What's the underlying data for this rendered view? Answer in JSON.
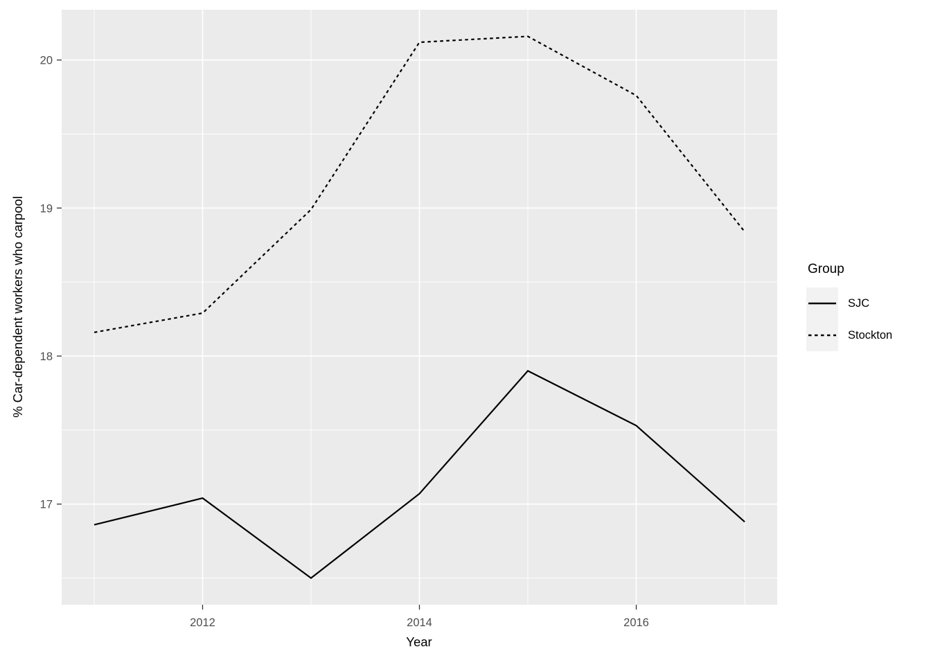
{
  "chart_data": {
    "type": "line",
    "title": "",
    "xlabel": "Year",
    "ylabel": "% Car-dependent workers who carpool",
    "x": [
      2011,
      2012,
      2013,
      2014,
      2015,
      2016,
      2017
    ],
    "series": [
      {
        "name": "SJC",
        "style": "solid",
        "values": [
          16.86,
          17.04,
          16.5,
          17.07,
          17.9,
          17.53,
          16.88
        ]
      },
      {
        "name": "Stockton",
        "style": "dashed",
        "values": [
          18.16,
          18.29,
          18.99,
          20.12,
          20.16,
          19.76,
          18.84
        ]
      }
    ],
    "xlim": [
      2010.7,
      2017.3
    ],
    "ylim": [
      16.32,
      20.34
    ],
    "x_ticks": [
      {
        "value": 2012,
        "label": "2012"
      },
      {
        "value": 2014,
        "label": "2014"
      },
      {
        "value": 2016,
        "label": "2016"
      }
    ],
    "y_ticks": [
      {
        "value": 17,
        "label": "17"
      },
      {
        "value": 18,
        "label": "18"
      },
      {
        "value": 19,
        "label": "19"
      },
      {
        "value": 20,
        "label": "20"
      }
    ],
    "x_minor_ticks": [
      2011,
      2013,
      2015,
      2017
    ],
    "y_minor_ticks": [
      16.5,
      17.5,
      18.5,
      19.5
    ],
    "grid": true,
    "legend_position": "right",
    "colors": {
      "panel_background": "#EBEBEB",
      "grid_line": "#FFFFFF",
      "series_line": "#000000",
      "tick_mark": "#333333",
      "tick_label": "#4D4D4D",
      "axis_title": "#000000",
      "legend_key_background": "#F2F2F2",
      "page_background": "#FFFFFF"
    }
  },
  "legend": {
    "title": "Group",
    "items": [
      {
        "label": "SJC",
        "style": "solid"
      },
      {
        "label": "Stockton",
        "style": "dashed"
      }
    ]
  }
}
